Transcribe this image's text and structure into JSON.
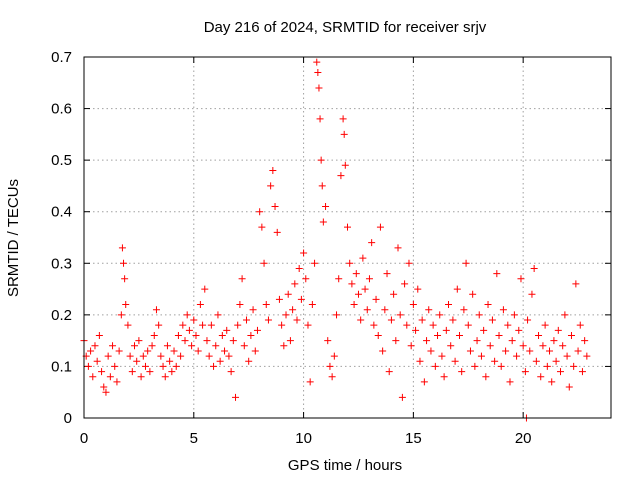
{
  "chart_data": {
    "type": "scatter",
    "title": "Day 216 of 2024, SRMTID for receiver srjv",
    "xlabel": "GPS time / hours",
    "ylabel": "SRMTID / TECUs",
    "xlim": [
      0,
      24
    ],
    "ylim": [
      0,
      0.7
    ],
    "xticks": [
      0,
      5,
      10,
      15,
      20
    ],
    "yticks": [
      0,
      0.1,
      0.2,
      0.3,
      0.4,
      0.5,
      0.6,
      0.7
    ],
    "xtick_labels": [
      "0",
      "5",
      "10",
      "15",
      "20"
    ],
    "ytick_labels": [
      "0",
      "0.1",
      "0.2",
      "0.3",
      "0.4",
      "0.5",
      "0.6",
      "0.7"
    ],
    "grid": true,
    "marker": "+",
    "color": "#ff0000",
    "series": [
      {
        "name": "SRMTID",
        "points": [
          [
            0.0,
            0.15
          ],
          [
            0.1,
            0.12
          ],
          [
            0.2,
            0.1
          ],
          [
            0.3,
            0.13
          ],
          [
            0.4,
            0.08
          ],
          [
            0.5,
            0.14
          ],
          [
            0.6,
            0.11
          ],
          [
            0.7,
            0.16
          ],
          [
            0.8,
            0.09
          ],
          [
            0.9,
            0.06
          ],
          [
            1.0,
            0.05
          ],
          [
            1.1,
            0.12
          ],
          [
            1.2,
            0.08
          ],
          [
            1.3,
            0.14
          ],
          [
            1.4,
            0.1
          ],
          [
            1.5,
            0.07
          ],
          [
            1.6,
            0.13
          ],
          [
            1.7,
            0.2
          ],
          [
            1.75,
            0.33
          ],
          [
            1.8,
            0.3
          ],
          [
            1.85,
            0.27
          ],
          [
            1.9,
            0.22
          ],
          [
            2.0,
            0.18
          ],
          [
            2.1,
            0.12
          ],
          [
            2.2,
            0.09
          ],
          [
            2.3,
            0.14
          ],
          [
            2.4,
            0.11
          ],
          [
            2.5,
            0.15
          ],
          [
            2.6,
            0.08
          ],
          [
            2.7,
            0.12
          ],
          [
            2.8,
            0.1
          ],
          [
            2.9,
            0.13
          ],
          [
            3.0,
            0.09
          ],
          [
            3.1,
            0.14
          ],
          [
            3.2,
            0.16
          ],
          [
            3.3,
            0.21
          ],
          [
            3.4,
            0.18
          ],
          [
            3.5,
            0.12
          ],
          [
            3.6,
            0.1
          ],
          [
            3.7,
            0.08
          ],
          [
            3.8,
            0.14
          ],
          [
            3.9,
            0.11
          ],
          [
            4.0,
            0.09
          ],
          [
            4.1,
            0.13
          ],
          [
            4.2,
            0.1
          ],
          [
            4.3,
            0.16
          ],
          [
            4.4,
            0.12
          ],
          [
            4.5,
            0.18
          ],
          [
            4.6,
            0.15
          ],
          [
            4.7,
            0.2
          ],
          [
            4.8,
            0.17
          ],
          [
            4.9,
            0.14
          ],
          [
            5.0,
            0.19
          ],
          [
            5.1,
            0.16
          ],
          [
            5.2,
            0.13
          ],
          [
            5.3,
            0.22
          ],
          [
            5.4,
            0.18
          ],
          [
            5.5,
            0.25
          ],
          [
            5.6,
            0.15
          ],
          [
            5.7,
            0.12
          ],
          [
            5.8,
            0.18
          ],
          [
            5.9,
            0.1
          ],
          [
            6.0,
            0.14
          ],
          [
            6.1,
            0.2
          ],
          [
            6.2,
            0.11
          ],
          [
            6.3,
            0.16
          ],
          [
            6.4,
            0.13
          ],
          [
            6.5,
            0.17
          ],
          [
            6.6,
            0.12
          ],
          [
            6.7,
            0.09
          ],
          [
            6.8,
            0.15
          ],
          [
            6.9,
            0.04
          ],
          [
            7.0,
            0.18
          ],
          [
            7.1,
            0.22
          ],
          [
            7.2,
            0.27
          ],
          [
            7.3,
            0.14
          ],
          [
            7.4,
            0.19
          ],
          [
            7.5,
            0.11
          ],
          [
            7.6,
            0.16
          ],
          [
            7.7,
            0.21
          ],
          [
            7.8,
            0.13
          ],
          [
            7.9,
            0.17
          ],
          [
            8.0,
            0.4
          ],
          [
            8.1,
            0.37
          ],
          [
            8.2,
            0.3
          ],
          [
            8.3,
            0.22
          ],
          [
            8.4,
            0.19
          ],
          [
            8.5,
            0.45
          ],
          [
            8.6,
            0.48
          ],
          [
            8.7,
            0.41
          ],
          [
            8.8,
            0.36
          ],
          [
            8.9,
            0.23
          ],
          [
            9.0,
            0.18
          ],
          [
            9.1,
            0.14
          ],
          [
            9.2,
            0.2
          ],
          [
            9.3,
            0.24
          ],
          [
            9.4,
            0.15
          ],
          [
            9.5,
            0.21
          ],
          [
            9.6,
            0.26
          ],
          [
            9.7,
            0.19
          ],
          [
            9.8,
            0.29
          ],
          [
            9.9,
            0.23
          ],
          [
            10.0,
            0.32
          ],
          [
            10.1,
            0.27
          ],
          [
            10.2,
            0.18
          ],
          [
            10.3,
            0.07
          ],
          [
            10.4,
            0.22
          ],
          [
            10.5,
            0.3
          ],
          [
            10.6,
            0.69
          ],
          [
            10.65,
            0.67
          ],
          [
            10.7,
            0.64
          ],
          [
            10.75,
            0.58
          ],
          [
            10.8,
            0.5
          ],
          [
            10.85,
            0.45
          ],
          [
            10.9,
            0.38
          ],
          [
            11.0,
            0.41
          ],
          [
            11.1,
            0.15
          ],
          [
            11.2,
            0.1
          ],
          [
            11.3,
            0.08
          ],
          [
            11.4,
            0.12
          ],
          [
            11.5,
            0.2
          ],
          [
            11.6,
            0.27
          ],
          [
            11.7,
            0.47
          ],
          [
            11.8,
            0.58
          ],
          [
            11.85,
            0.55
          ],
          [
            11.9,
            0.49
          ],
          [
            12.0,
            0.37
          ],
          [
            12.1,
            0.3
          ],
          [
            12.2,
            0.26
          ],
          [
            12.3,
            0.22
          ],
          [
            12.4,
            0.28
          ],
          [
            12.5,
            0.24
          ],
          [
            12.6,
            0.19
          ],
          [
            12.7,
            0.31
          ],
          [
            12.8,
            0.25
          ],
          [
            12.9,
            0.21
          ],
          [
            13.0,
            0.27
          ],
          [
            13.1,
            0.34
          ],
          [
            13.2,
            0.18
          ],
          [
            13.3,
            0.23
          ],
          [
            13.4,
            0.16
          ],
          [
            13.5,
            0.37
          ],
          [
            13.6,
            0.13
          ],
          [
            13.7,
            0.21
          ],
          [
            13.8,
            0.28
          ],
          [
            13.9,
            0.09
          ],
          [
            14.0,
            0.19
          ],
          [
            14.1,
            0.24
          ],
          [
            14.2,
            0.15
          ],
          [
            14.3,
            0.33
          ],
          [
            14.4,
            0.2
          ],
          [
            14.5,
            0.04
          ],
          [
            14.6,
            0.26
          ],
          [
            14.7,
            0.18
          ],
          [
            14.8,
            0.3
          ],
          [
            14.9,
            0.14
          ],
          [
            15.0,
            0.22
          ],
          [
            15.1,
            0.17
          ],
          [
            15.2,
            0.25
          ],
          [
            15.3,
            0.11
          ],
          [
            15.4,
            0.19
          ],
          [
            15.5,
            0.07
          ],
          [
            15.6,
            0.15
          ],
          [
            15.7,
            0.21
          ],
          [
            15.8,
            0.13
          ],
          [
            15.9,
            0.18
          ],
          [
            16.0,
            0.1
          ],
          [
            16.1,
            0.16
          ],
          [
            16.2,
            0.2
          ],
          [
            16.3,
            0.12
          ],
          [
            16.4,
            0.08
          ],
          [
            16.5,
            0.17
          ],
          [
            16.6,
            0.22
          ],
          [
            16.7,
            0.14
          ],
          [
            16.8,
            0.19
          ],
          [
            16.9,
            0.11
          ],
          [
            17.0,
            0.25
          ],
          [
            17.1,
            0.16
          ],
          [
            17.2,
            0.09
          ],
          [
            17.3,
            0.21
          ],
          [
            17.4,
            0.3
          ],
          [
            17.5,
            0.18
          ],
          [
            17.6,
            0.13
          ],
          [
            17.7,
            0.24
          ],
          [
            17.8,
            0.1
          ],
          [
            17.9,
            0.15
          ],
          [
            18.0,
            0.2
          ],
          [
            18.1,
            0.12
          ],
          [
            18.2,
            0.17
          ],
          [
            18.3,
            0.08
          ],
          [
            18.4,
            0.22
          ],
          [
            18.5,
            0.14
          ],
          [
            18.6,
            0.19
          ],
          [
            18.7,
            0.11
          ],
          [
            18.8,
            0.28
          ],
          [
            18.9,
            0.16
          ],
          [
            19.0,
            0.1
          ],
          [
            19.1,
            0.21
          ],
          [
            19.2,
            0.13
          ],
          [
            19.3,
            0.18
          ],
          [
            19.4,
            0.07
          ],
          [
            19.5,
            0.15
          ],
          [
            19.6,
            0.2
          ],
          [
            19.7,
            0.12
          ],
          [
            19.8,
            0.17
          ],
          [
            19.9,
            0.27
          ],
          [
            20.0,
            0.14
          ],
          [
            20.1,
            0.09
          ],
          [
            20.15,
            0.0
          ],
          [
            20.2,
            0.19
          ],
          [
            20.3,
            0.13
          ],
          [
            20.4,
            0.24
          ],
          [
            20.5,
            0.29
          ],
          [
            20.6,
            0.11
          ],
          [
            20.7,
            0.16
          ],
          [
            20.8,
            0.08
          ],
          [
            20.9,
            0.14
          ],
          [
            21.0,
            0.18
          ],
          [
            21.1,
            0.1
          ],
          [
            21.2,
            0.13
          ],
          [
            21.3,
            0.07
          ],
          [
            21.4,
            0.15
          ],
          [
            21.5,
            0.11
          ],
          [
            21.6,
            0.17
          ],
          [
            21.7,
            0.09
          ],
          [
            21.8,
            0.14
          ],
          [
            21.9,
            0.2
          ],
          [
            22.0,
            0.12
          ],
          [
            22.1,
            0.06
          ],
          [
            22.2,
            0.16
          ],
          [
            22.3,
            0.1
          ],
          [
            22.4,
            0.26
          ],
          [
            22.5,
            0.13
          ],
          [
            22.6,
            0.18
          ],
          [
            22.7,
            0.09
          ],
          [
            22.8,
            0.15
          ],
          [
            22.9,
            0.12
          ]
        ]
      }
    ]
  }
}
